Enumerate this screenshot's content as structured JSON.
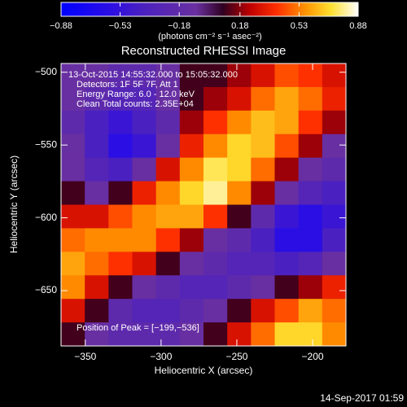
{
  "chart_data": {
    "type": "heatmap",
    "title": "Reconstructed RHESSI Image",
    "xlabel": "Heliocentric X (arcsec)",
    "ylabel": "Heliocentric Y (arcsec)",
    "annotations": [
      "13-Oct-2015 14:55:32.000 to 15:05:32.000",
      "Detectors: 1F 5F 7F, Att 1",
      "Energy Range: 6.0 - 12.0 keV",
      "Clean     Total counts: 2.35E+04"
    ],
    "peak_label": "Position of Peak = [−199,−536]",
    "footer": "14-Sep-2017 01:59",
    "colorbar_label": "(photons cm⁻² s⁻¹ asec⁻²)",
    "colorbar_lim": [
      -0.88,
      0.88
    ],
    "colorbar_ticks": [
      {
        "value": -0.88,
        "label": "−0.88"
      },
      {
        "value": -0.53,
        "label": "−0.53"
      },
      {
        "value": -0.18,
        "label": "−0.18"
      },
      0.18,
      0.53,
      0.88
    ],
    "colormap": [
      "#0000ff",
      "#1808f0",
      "#3010e0",
      "#4a20c0",
      "#5a28b0",
      "#6a30a0",
      "#300020",
      "#c00000",
      "#ff3000",
      "#ff9000",
      "#ffe030",
      "#ffffff"
    ],
    "xlim": [
      -366,
      -178
    ],
    "ylim": [
      -688,
      -494
    ],
    "xticks": [
      {
        "value": -350,
        "label": "−350"
      },
      {
        "value": -300,
        "label": "−300"
      },
      {
        "value": -250,
        "label": "−250"
      },
      {
        "value": -200,
        "label": "−200"
      }
    ],
    "yticks": [
      {
        "value": -500,
        "label": "−500"
      },
      {
        "value": -550,
        "label": "−550"
      },
      {
        "value": -600,
        "label": "−600"
      },
      {
        "value": -650,
        "label": "−650"
      }
    ],
    "z": [
      [
        -0.1,
        -0.1,
        -0.2,
        -0.2,
        -0.1,
        0.1,
        0.1,
        0.2,
        0.3,
        0.45,
        0.4,
        0.3
      ],
      [
        -0.1,
        -0.2,
        -0.3,
        -0.3,
        -0.1,
        0.1,
        0.2,
        0.3,
        0.5,
        0.6,
        0.5,
        0.35
      ],
      [
        -0.2,
        -0.4,
        -0.5,
        -0.4,
        -0.2,
        0.2,
        0.4,
        0.55,
        0.65,
        0.6,
        0.4,
        0.2
      ],
      [
        -0.1,
        -0.4,
        -0.6,
        -0.5,
        -0.1,
        0.35,
        0.55,
        0.7,
        0.65,
        0.45,
        0.2,
        -0.1
      ],
      [
        -0.1,
        -0.3,
        -0.4,
        -0.1,
        0.3,
        0.55,
        0.75,
        0.7,
        0.5,
        0.2,
        -0.1,
        -0.2
      ],
      [
        0.1,
        -0.1,
        0.1,
        0.35,
        0.55,
        0.7,
        0.8,
        0.55,
        0.2,
        -0.1,
        -0.3,
        -0.4
      ],
      [
        0.3,
        0.3,
        0.45,
        0.55,
        0.6,
        0.6,
        0.4,
        0.1,
        -0.2,
        -0.5,
        -0.6,
        -0.5
      ],
      [
        0.5,
        0.55,
        0.55,
        0.55,
        0.4,
        0.2,
        -0.1,
        -0.2,
        -0.4,
        -0.6,
        -0.6,
        -0.4
      ],
      [
        0.6,
        0.5,
        0.4,
        0.3,
        0.1,
        -0.1,
        -0.2,
        -0.3,
        -0.3,
        -0.4,
        -0.3,
        -0.1
      ],
      [
        0.55,
        0.3,
        0.1,
        -0.1,
        -0.2,
        -0.3,
        -0.3,
        -0.2,
        -0.1,
        0.1,
        0.2,
        0.35
      ],
      [
        0.3,
        0.1,
        -0.2,
        -0.3,
        -0.3,
        -0.2,
        -0.1,
        0.1,
        0.3,
        0.45,
        0.6,
        0.5
      ],
      [
        0.1,
        -0.1,
        -0.2,
        -0.2,
        -0.2,
        -0.1,
        0.1,
        0.3,
        0.5,
        0.7,
        0.7,
        0.55
      ]
    ]
  }
}
